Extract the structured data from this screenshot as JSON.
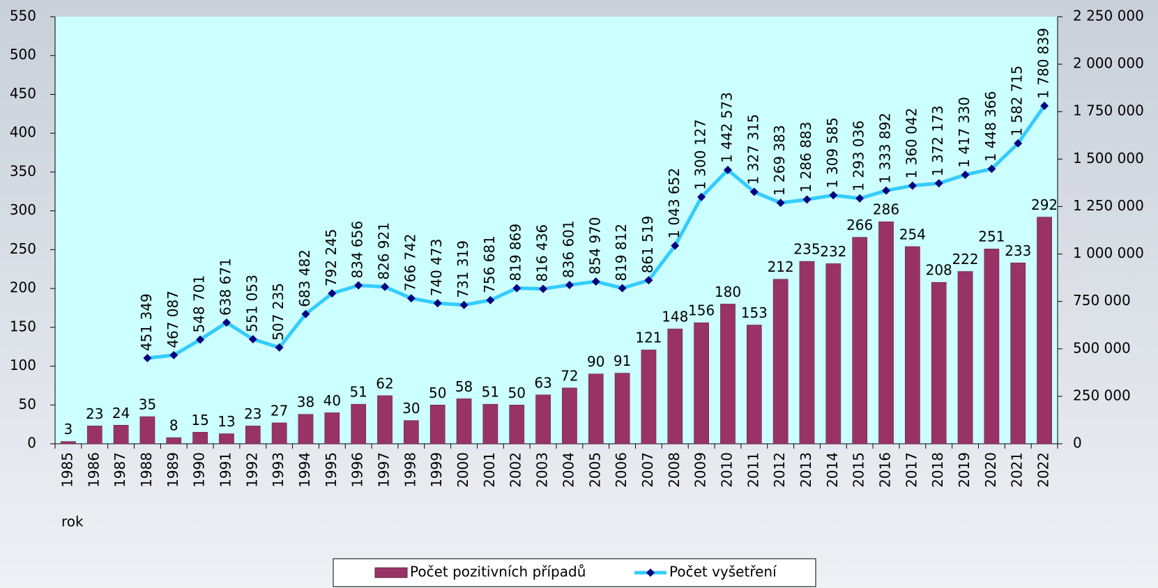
{
  "chart_data": {
    "type": "bar",
    "x_label": "rok",
    "categories": [
      "1985",
      "1986",
      "1987",
      "1988",
      "1989",
      "1990",
      "1991",
      "1992",
      "1993",
      "1994",
      "1995",
      "1996",
      "1997",
      "1998",
      "1999",
      "2000",
      "2001",
      "2002",
      "2003",
      "2004",
      "2005",
      "2006",
      "2007",
      "2008",
      "2009",
      "2010",
      "2011",
      "2012",
      "2013",
      "2014",
      "2015",
      "2016",
      "2017",
      "2018",
      "2019",
      "2020",
      "2021",
      "2022"
    ],
    "series": [
      {
        "name": "Počet pozitivních případů",
        "type": "bar",
        "color": "#993366",
        "values": [
          3,
          23,
          24,
          35,
          8,
          15,
          13,
          23,
          27,
          38,
          40,
          51,
          62,
          30,
          50,
          58,
          51,
          50,
          63,
          72,
          90,
          91,
          121,
          148,
          156,
          180,
          153,
          212,
          235,
          232,
          266,
          286,
          254,
          208,
          222,
          251,
          233,
          292
        ]
      },
      {
        "name": "Počet vyšetření",
        "type": "line",
        "axis": "y2",
        "color": "#33ccff",
        "marker_color": "#000080",
        "values": [
          null,
          null,
          null,
          451349,
          467087,
          548701,
          638671,
          551053,
          507235,
          683482,
          792245,
          834656,
          826921,
          766742,
          740473,
          731319,
          756681,
          819869,
          816436,
          836601,
          854970,
          819812,
          861519,
          1043652,
          1300127,
          1442573,
          1327315,
          1269383,
          1286883,
          1309585,
          1293036,
          1333892,
          1360042,
          1372173,
          1417330,
          1448366,
          1582715,
          1780839
        ],
        "value_labels": [
          null,
          null,
          null,
          "451 349",
          "467 087",
          "548 701",
          "638 671",
          "551 053",
          "507 235",
          "683 482",
          "792 245",
          "834 656",
          "826 921",
          "766 742",
          "740 473",
          "731 319",
          "756 681",
          "819 869",
          "816 436",
          "836 601",
          "854 970",
          "819 812",
          "861 519",
          "1 043 652",
          "1 300 127",
          "1 442 573",
          "1 327 315",
          "1 269 383",
          "1 286 883",
          "1 309 585",
          "1 293 036",
          "1 333 892",
          "1 360 042",
          "1 372 173",
          "1 417 330",
          "1 448 366",
          "1 582 715",
          "1 780 839"
        ]
      }
    ],
    "ylim": [
      0,
      550
    ],
    "yticks": [
      0,
      50,
      100,
      150,
      200,
      250,
      300,
      350,
      400,
      450,
      500,
      550
    ],
    "y2lim": [
      0,
      2250000
    ],
    "y2ticks": [
      0,
      {
        "value": 250000,
        "label": "250 000"
      },
      {
        "value": 500000,
        "label": "500 000"
      },
      {
        "value": 750000,
        "label": "750 000"
      },
      {
        "value": 1000000,
        "label": "1 000 000"
      },
      {
        "value": 1250000,
        "label": "1 250 000"
      },
      {
        "value": 1500000,
        "label": "1 500 000"
      },
      {
        "value": 1750000,
        "label": "1 750 000"
      },
      {
        "value": 2000000,
        "label": "2 000 000"
      },
      {
        "value": 2250000,
        "label": "2 250 000"
      }
    ],
    "plot_background": "#ccffff",
    "legend": "bottom"
  }
}
